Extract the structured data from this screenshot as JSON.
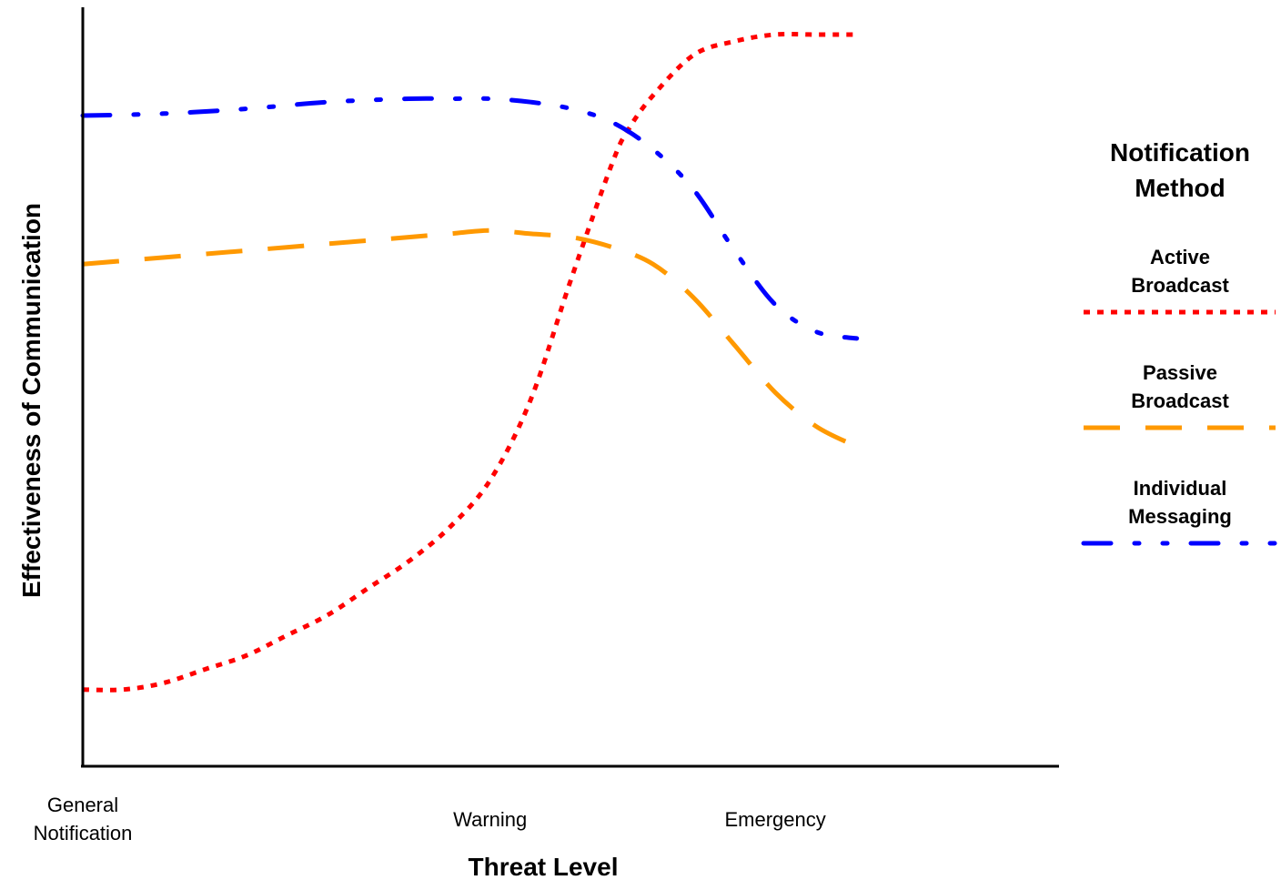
{
  "chart_data": {
    "type": "line",
    "xlabel": "Threat Level",
    "ylabel": "Effectiveness of Communication",
    "x_ticks": [
      {
        "x": 0,
        "lines": [
          "General",
          "Notification"
        ]
      },
      {
        "x": 50,
        "lines": [
          "Warning"
        ]
      },
      {
        "x": 85,
        "lines": [
          "Emergency"
        ]
      }
    ],
    "xlim": [
      0,
      110
    ],
    "ylim": [
      0,
      100
    ],
    "grid": false,
    "legend": {
      "position": "right",
      "title_lines": [
        "Notification",
        "Method"
      ]
    },
    "series": [
      {
        "name_lines": [
          "Active",
          "Broadcast"
        ],
        "color": "#ff0000",
        "style": "dotted",
        "x": [
          0,
          5,
          10,
          15,
          20,
          25,
          30,
          35,
          40,
          45,
          50,
          55,
          60,
          65,
          67,
          70,
          75,
          80,
          85,
          90,
          95
        ],
        "y": [
          3,
          3,
          4,
          6,
          8,
          11,
          14,
          18,
          22,
          27,
          34,
          46,
          64,
          81,
          86,
          91,
          97,
          99,
          100,
          100,
          100
        ]
      },
      {
        "name_lines": [
          "Passive",
          "Broadcast"
        ],
        "color": "#ff9900",
        "style": "dashed",
        "x": [
          0,
          10,
          20,
          30,
          40,
          45,
          50,
          55,
          60,
          65,
          70,
          75,
          80,
          85,
          90,
          95
        ],
        "y": [
          66,
          67,
          68,
          69,
          70,
          70.5,
          71,
          70.5,
          70,
          68.5,
          66,
          61,
          54,
          47,
          42,
          39
        ]
      },
      {
        "name_lines": [
          "Individual",
          "Messaging"
        ],
        "color": "#0000ff",
        "style": "dashdotdot",
        "x": [
          0,
          10,
          20,
          30,
          40,
          45,
          50,
          55,
          60,
          65,
          70,
          75,
          80,
          85,
          90,
          95
        ],
        "y": [
          88,
          88.3,
          89,
          90,
          90.5,
          90.5,
          90.5,
          90,
          89,
          87,
          83,
          77,
          68,
          60,
          56,
          55
        ]
      }
    ]
  }
}
